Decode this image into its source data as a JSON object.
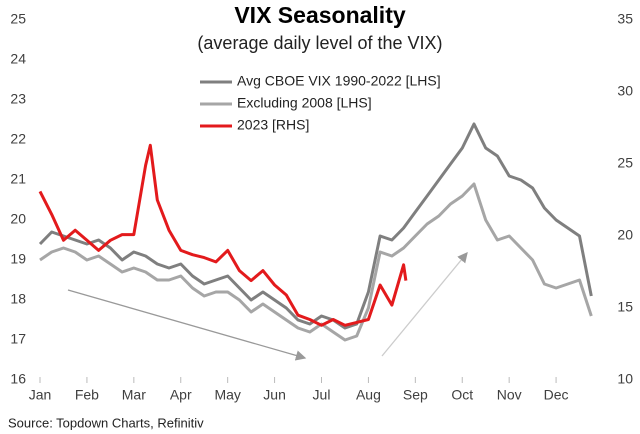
{
  "chart_data": {
    "type": "line",
    "title": "VIX Seasonality",
    "subtitle": "(average daily level of the VIX)",
    "source": "Source: Topdown Charts, Refinitiv",
    "xlim": [
      0,
      12
    ],
    "xticks": [
      {
        "value": 0,
        "label": "Jan"
      },
      {
        "value": 1,
        "label": "Feb"
      },
      {
        "value": 2,
        "label": "Mar"
      },
      {
        "value": 3,
        "label": "Apr"
      },
      {
        "value": 4,
        "label": "May"
      },
      {
        "value": 5,
        "label": "Jun"
      },
      {
        "value": 6,
        "label": "Jul"
      },
      {
        "value": 7,
        "label": "Aug"
      },
      {
        "value": 8,
        "label": "Sep"
      },
      {
        "value": 9,
        "label": "Oct"
      },
      {
        "value": 10,
        "label": "Nov"
      },
      {
        "value": 11,
        "label": "Dec"
      }
    ],
    "ylim": [
      16,
      25
    ],
    "yticks": [
      16,
      17,
      18,
      19,
      20,
      21,
      22,
      23,
      24,
      25
    ],
    "y2lim": [
      10,
      35
    ],
    "y2ticks": [
      10,
      15,
      20,
      25,
      30,
      35
    ],
    "series": [
      {
        "name": "Avg CBOE VIX 1990-2022 [LHS]",
        "color": "#7f7f7f",
        "axis": "y",
        "x": [
          0,
          0.25,
          0.5,
          0.75,
          1,
          1.25,
          1.5,
          1.75,
          2,
          2.25,
          2.5,
          2.75,
          3,
          3.25,
          3.5,
          3.75,
          4,
          4.25,
          4.5,
          4.75,
          5,
          5.25,
          5.5,
          5.75,
          6,
          6.25,
          6.5,
          6.75,
          7,
          7.25,
          7.5,
          7.75,
          8,
          8.25,
          8.5,
          8.75,
          9,
          9.25,
          9.5,
          9.75,
          10,
          10.25,
          10.5,
          10.75,
          11,
          11.25,
          11.5,
          11.75
        ],
        "values": [
          19.4,
          19.7,
          19.6,
          19.5,
          19.4,
          19.5,
          19.3,
          19.0,
          19.2,
          19.1,
          18.9,
          18.8,
          18.9,
          18.6,
          18.4,
          18.5,
          18.6,
          18.3,
          18.0,
          18.2,
          18.0,
          17.8,
          17.5,
          17.4,
          17.6,
          17.5,
          17.3,
          17.4,
          18.2,
          19.6,
          19.5,
          19.8,
          20.2,
          20.6,
          21.0,
          21.4,
          21.8,
          22.4,
          21.8,
          21.6,
          21.1,
          21.0,
          20.8,
          20.3,
          20.0,
          19.8,
          19.6,
          18.1
        ]
      },
      {
        "name": "Excluding 2008 [LHS]",
        "color": "#a6a6a6",
        "axis": "y",
        "x": [
          0,
          0.25,
          0.5,
          0.75,
          1,
          1.25,
          1.5,
          1.75,
          2,
          2.25,
          2.5,
          2.75,
          3,
          3.25,
          3.5,
          3.75,
          4,
          4.25,
          4.5,
          4.75,
          5,
          5.25,
          5.5,
          5.75,
          6,
          6.25,
          6.5,
          6.75,
          7,
          7.25,
          7.5,
          7.75,
          8,
          8.25,
          8.5,
          8.75,
          9,
          9.25,
          9.5,
          9.75,
          10,
          10.25,
          10.5,
          10.75,
          11,
          11.25,
          11.5,
          11.75
        ],
        "values": [
          19.0,
          19.2,
          19.3,
          19.2,
          19.0,
          19.1,
          18.9,
          18.7,
          18.8,
          18.7,
          18.5,
          18.5,
          18.6,
          18.3,
          18.1,
          18.2,
          18.2,
          18.0,
          17.7,
          17.9,
          17.7,
          17.5,
          17.3,
          17.2,
          17.4,
          17.2,
          17.0,
          17.1,
          17.8,
          19.2,
          19.1,
          19.3,
          19.6,
          19.9,
          20.1,
          20.4,
          20.6,
          20.9,
          20.0,
          19.5,
          19.6,
          19.3,
          19.0,
          18.4,
          18.3,
          18.4,
          18.5,
          17.6
        ]
      },
      {
        "name": "2023 [RHS]",
        "color": "#e31a1c",
        "axis": "y2",
        "x": [
          0,
          0.25,
          0.5,
          0.75,
          1,
          1.25,
          1.5,
          1.75,
          2,
          2.25,
          2.35,
          2.5,
          2.75,
          3,
          3.25,
          3.5,
          3.75,
          4,
          4.25,
          4.5,
          4.75,
          5,
          5.25,
          5.5,
          5.75,
          6,
          6.25,
          6.5,
          6.75,
          7,
          7.25,
          7.5,
          7.75,
          7.8
        ],
        "values": [
          23.1,
          21.5,
          19.7,
          20.4,
          19.7,
          19.0,
          19.7,
          20.1,
          20.1,
          24.9,
          26.3,
          22.5,
          20.4,
          19.0,
          18.7,
          18.5,
          18.2,
          19.0,
          17.6,
          16.9,
          17.6,
          16.6,
          15.9,
          14.5,
          14.2,
          13.8,
          14.2,
          13.8,
          14.0,
          14.2,
          16.6,
          15.2,
          18.0,
          16.9
        ]
      }
    ]
  }
}
